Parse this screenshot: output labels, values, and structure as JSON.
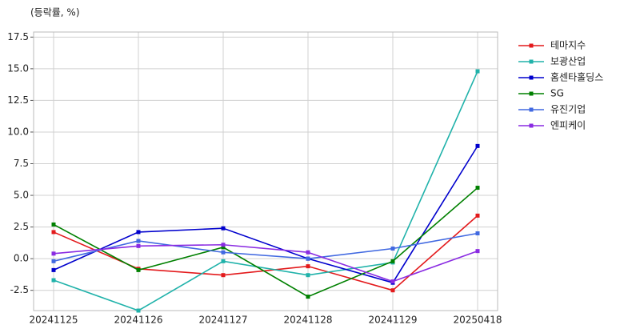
{
  "chart_data": {
    "type": "line",
    "y_label": "(등락률, %)",
    "categories": [
      "20241125",
      "20241126",
      "20241127",
      "20241128",
      "20241129",
      "20250418"
    ],
    "series": [
      {
        "name": "테마지수",
        "color": "#e31a1c",
        "values": [
          2.1,
          -0.8,
          -1.3,
          -0.6,
          -2.5,
          3.4
        ]
      },
      {
        "name": "보광산업",
        "color": "#20b2aa",
        "values": [
          -1.7,
          -4.1,
          -0.2,
          -1.3,
          -0.3,
          14.8
        ]
      },
      {
        "name": "홈센타홀딩스",
        "color": "#0000cd",
        "values": [
          -0.9,
          2.1,
          2.4,
          0.0,
          -1.9,
          8.9
        ]
      },
      {
        "name": "SG",
        "color": "#008000",
        "values": [
          2.7,
          -0.9,
          0.9,
          -3.0,
          -0.2,
          5.6
        ]
      },
      {
        "name": "유진기업",
        "color": "#4169e1",
        "values": [
          -0.2,
          1.4,
          0.5,
          0.0,
          0.8,
          2.0
        ]
      },
      {
        "name": "엔피케이",
        "color": "#8a2be2",
        "values": [
          0.4,
          1.0,
          1.1,
          0.5,
          -1.8,
          0.6
        ]
      }
    ],
    "ylim": [
      -4.1,
      17.9
    ],
    "yticks": [
      -2.5,
      {
        "value": 0,
        "label": "0.0"
      },
      2.5,
      {
        "value": 5,
        "label": "5.0"
      },
      7.5,
      {
        "value": 10,
        "label": "10.0"
      },
      12.5,
      {
        "value": 15,
        "label": "15.0"
      },
      17.5
    ],
    "grid": true,
    "legend": "right"
  }
}
